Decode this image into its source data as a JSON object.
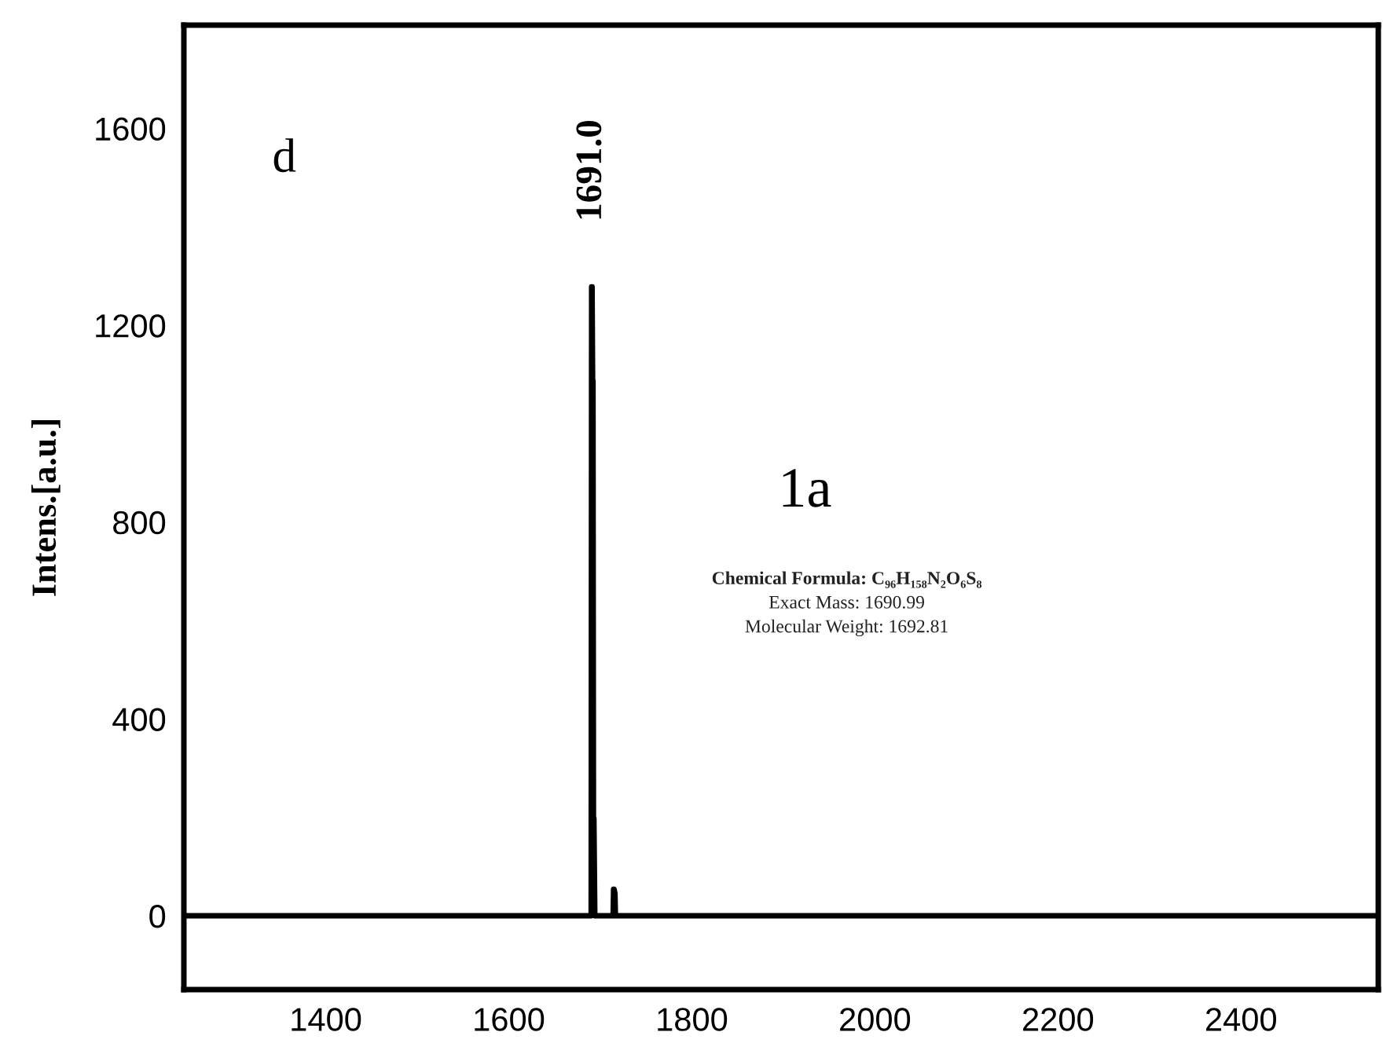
{
  "chart_data": {
    "type": "line",
    "ylabel": "Intens.[a.u.]",
    "x": [
      1250,
      1689,
      1690,
      1690.5,
      1691,
      1691.6,
      1692,
      1692.5,
      1693,
      1694,
      1713,
      1714,
      1714.5,
      1715,
      1716,
      1716.5,
      2550
    ],
    "series": [
      {
        "color": "#000000",
        "values": [
          0,
          0,
          0,
          1278,
          1278,
          1087,
          1087,
          198,
          198,
          0,
          0,
          0,
          54,
          54,
          45,
          0,
          0
        ]
      }
    ],
    "xlim": [
      1245,
      2550
    ],
    "xticks": [
      1400,
      1600,
      1800,
      2000,
      2200,
      2400
    ],
    "ylim": [
      -150,
      1810
    ],
    "yticks": [
      0,
      400,
      800,
      1200,
      1600
    ],
    "grid": false,
    "ref_lines": [
      {
        "axis": "y",
        "value": 0,
        "color": "#000000"
      }
    ],
    "marker": "none",
    "line_style": "solid",
    "annotations": [
      {
        "text": "1691.0",
        "x": 1691,
        "y": 1278
      },
      "d",
      "1a",
      "Chemical Formula: C₉₆H₁₅₈N₂O₆S₈",
      "Exact Mass: 1690.99",
      "Molecular Weight: 1692.81"
    ]
  }
}
